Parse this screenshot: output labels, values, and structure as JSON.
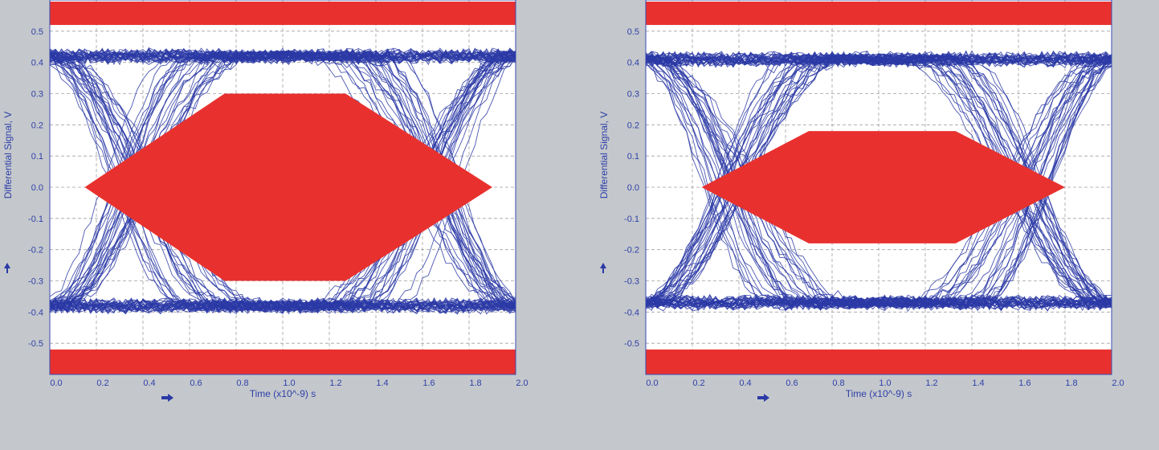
{
  "chart_data": [
    {
      "type": "eye-diagram",
      "xlabel": "Time (x10^-9) s",
      "ylabel": "Differential Signal, V",
      "xlim": [
        0.0,
        2.0
      ],
      "ylim": [
        -0.6,
        0.6
      ],
      "x_ticks": [
        "0.0",
        "0.2",
        "0.4",
        "0.6",
        "0.8",
        "1.0",
        "1.2",
        "1.4",
        "1.6",
        "1.8",
        "2.0"
      ],
      "y_ticks": [
        "0.5",
        "0.4",
        "0.3",
        "0.2",
        "0.1",
        "0.0",
        "-0.1",
        "-0.2",
        "-0.3",
        "-0.4",
        "-0.5"
      ],
      "grid": true,
      "trace_color": "#2b3aa6",
      "mask_color": "#e8312f",
      "levels": {
        "high": 0.42,
        "low": -0.38
      },
      "crossings": [
        0.0,
        2.0
      ],
      "mask_polygon": [
        [
          0.15,
          0.0
        ],
        [
          0.75,
          0.3
        ],
        [
          1.27,
          0.3
        ],
        [
          1.9,
          0.0
        ],
        [
          1.27,
          -0.3
        ],
        [
          0.75,
          -0.3
        ]
      ],
      "mask_top_min": 0.52,
      "mask_bottom_max": -0.52
    },
    {
      "type": "eye-diagram",
      "xlabel": "Time (x10^-9) s",
      "ylabel": "Differential Signal, V",
      "xlim": [
        0.0,
        2.0
      ],
      "ylim": [
        -0.6,
        0.6
      ],
      "x_ticks": [
        "0.0",
        "0.2",
        "0.4",
        "0.6",
        "0.8",
        "1.0",
        "1.2",
        "1.4",
        "1.6",
        "1.8",
        "2.0"
      ],
      "y_ticks": [
        "0.5",
        "0.4",
        "0.3",
        "0.2",
        "0.1",
        "0.0",
        "-0.1",
        "-0.2",
        "-0.3",
        "-0.4",
        "-0.5"
      ],
      "grid": true,
      "trace_color": "#2b3aa6",
      "mask_color": "#e8312f",
      "levels": {
        "high": 0.41,
        "low": -0.37
      },
      "crossings": [
        0.0,
        2.0
      ],
      "mask_polygon": [
        [
          0.24,
          0.0
        ],
        [
          0.7,
          0.18
        ],
        [
          1.33,
          0.18
        ],
        [
          1.8,
          0.0
        ],
        [
          1.33,
          -0.18
        ],
        [
          0.7,
          -0.18
        ]
      ],
      "mask_top_min": 0.52,
      "mask_bottom_max": -0.52
    }
  ]
}
